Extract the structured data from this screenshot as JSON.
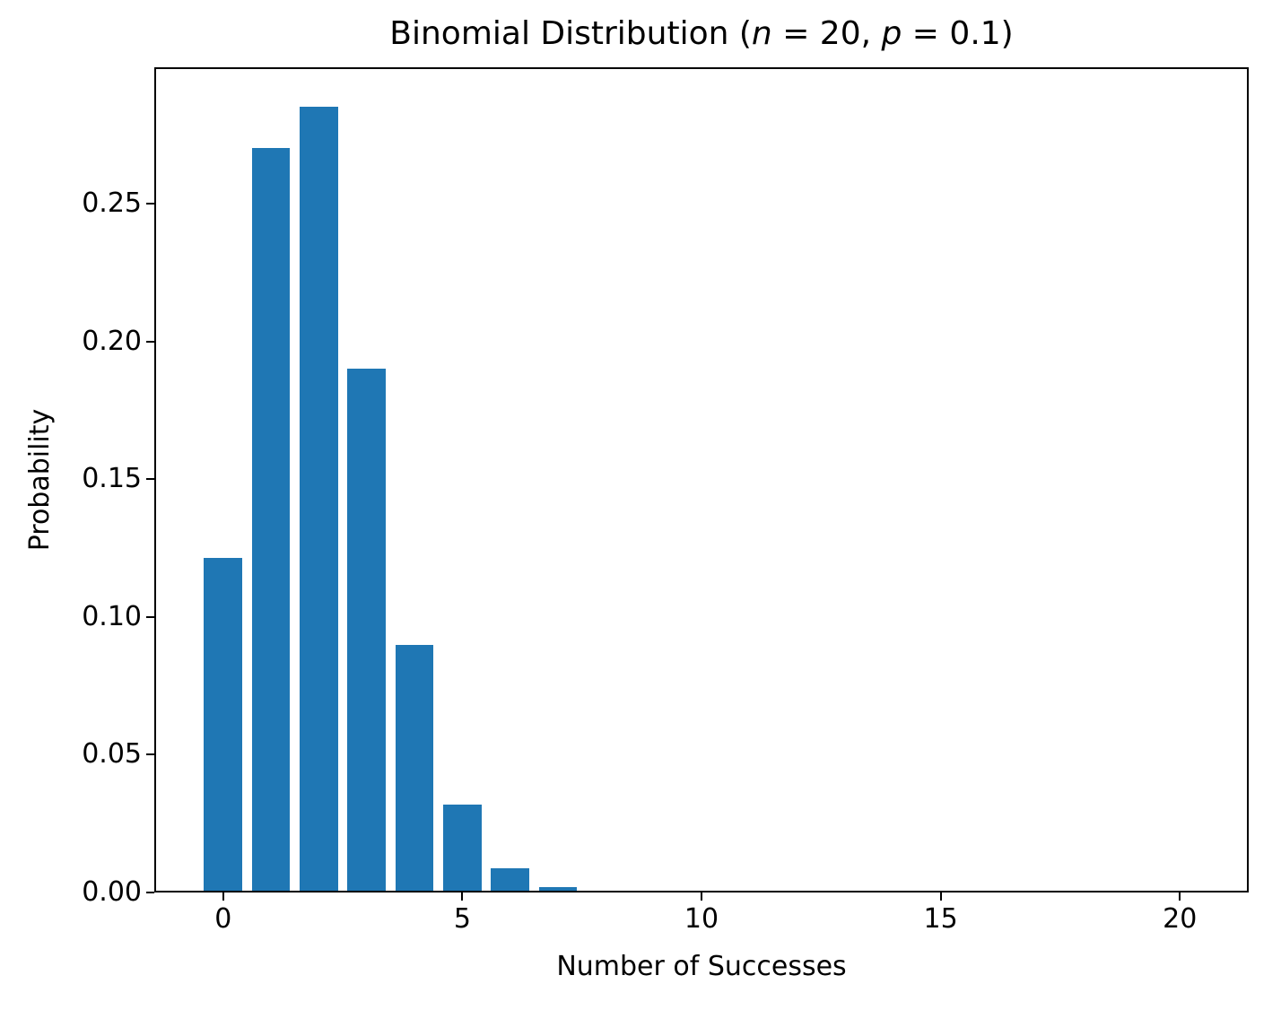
{
  "figure": {
    "background": "#ffffff"
  },
  "title": {
    "prefix": "Binomial Distribution (",
    "var_n": "n",
    "mid": " = 20, ",
    "var_p": "p",
    "suffix": " = 0.1)"
  },
  "chart_data": {
    "type": "bar",
    "title": "Binomial Distribution (n = 20, p = 0.1)",
    "xlabel": "Number of Successes",
    "ylabel": "Probability",
    "bar_color": "#1f77b4",
    "bar_width": 0.8,
    "x": [
      0,
      1,
      2,
      3,
      4,
      5,
      6,
      7,
      8,
      9,
      10,
      11,
      12,
      13,
      14,
      15,
      16,
      17,
      18,
      19,
      20
    ],
    "values": [
      0.121577,
      0.27017,
      0.28518,
      0.19012,
      0.089779,
      0.031921,
      0.008867,
      0.00197,
      0.000356,
      5.3e-05,
      6e-06,
      1e-06,
      0,
      0,
      0,
      0,
      0,
      0,
      0,
      0,
      0
    ],
    "xlim": [
      -1.44,
      21.44
    ],
    "ylim": [
      0,
      0.2995
    ],
    "xticks": [
      0,
      5,
      10,
      15,
      20
    ],
    "xtick_labels": [
      "0",
      "5",
      "10",
      "15",
      "20"
    ],
    "yticks": [
      0,
      0.05,
      0.1,
      0.15,
      0.2,
      0.25
    ],
    "ytick_labels": [
      "0.00",
      "0.05",
      "0.10",
      "0.15",
      "0.20",
      "0.25"
    ],
    "grid": false
  }
}
